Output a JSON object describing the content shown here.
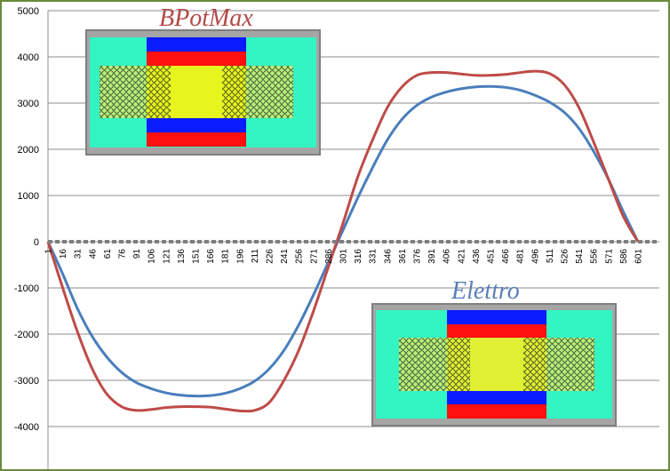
{
  "chart_data": {
    "type": "line",
    "title": "",
    "xlabel": "",
    "ylabel": "",
    "ylim": [
      -5000,
      5000
    ],
    "yticks": [
      5000,
      4000,
      3000,
      2000,
      1000,
      0,
      -1000,
      -2000,
      -3000,
      -4000,
      -5000
    ],
    "xlim": [
      1,
      601
    ],
    "xticks": [
      1,
      16,
      31,
      46,
      61,
      76,
      91,
      106,
      121,
      136,
      151,
      166,
      181,
      196,
      211,
      226,
      241,
      256,
      271,
      286,
      301,
      316,
      331,
      346,
      361,
      376,
      391,
      406,
      421,
      436,
      451,
      466,
      481,
      496,
      511,
      526,
      541,
      556,
      571,
      586,
      601
    ],
    "grid": true,
    "series": [
      {
        "color": "#4a7ebb",
        "x": [
          1,
          16,
          31,
          46,
          61,
          76,
          91,
          106,
          121,
          136,
          151,
          166,
          181,
          196,
          211,
          226,
          241,
          256,
          271,
          286,
          301,
          316,
          331,
          346,
          361,
          376,
          391,
          406,
          421,
          436,
          451,
          466,
          481,
          496,
          511,
          526,
          541,
          556,
          571,
          586,
          601
        ],
        "values": [
          0,
          -700,
          -1450,
          -2050,
          -2500,
          -2830,
          -3050,
          -3180,
          -3270,
          -3320,
          -3340,
          -3330,
          -3280,
          -3180,
          -3020,
          -2750,
          -2350,
          -1800,
          -1150,
          -450,
          250,
          950,
          1600,
          2200,
          2650,
          2950,
          3130,
          3240,
          3310,
          3350,
          3360,
          3340,
          3280,
          3170,
          3020,
          2800,
          2450,
          1950,
          1350,
          650,
          0
        ]
      },
      {
        "color": "#be4b48",
        "x": [
          1,
          16,
          31,
          46,
          61,
          76,
          91,
          106,
          121,
          136,
          151,
          166,
          181,
          196,
          211,
          226,
          241,
          256,
          271,
          286,
          301,
          316,
          331,
          346,
          361,
          376,
          391,
          406,
          421,
          436,
          451,
          466,
          481,
          496,
          511,
          526,
          541,
          556,
          571,
          586,
          601
        ],
        "values": [
          0,
          -1000,
          -1950,
          -2750,
          -3300,
          -3570,
          -3650,
          -3630,
          -3590,
          -3570,
          -3570,
          -3580,
          -3620,
          -3660,
          -3650,
          -3480,
          -3000,
          -2350,
          -1500,
          -550,
          400,
          1400,
          2200,
          2900,
          3350,
          3600,
          3660,
          3660,
          3630,
          3600,
          3600,
          3620,
          3660,
          3690,
          3640,
          3400,
          2900,
          2150,
          1350,
          550,
          0
        ]
      }
    ],
    "inset_titles": [
      "BPotMax",
      "Elettro"
    ]
  }
}
